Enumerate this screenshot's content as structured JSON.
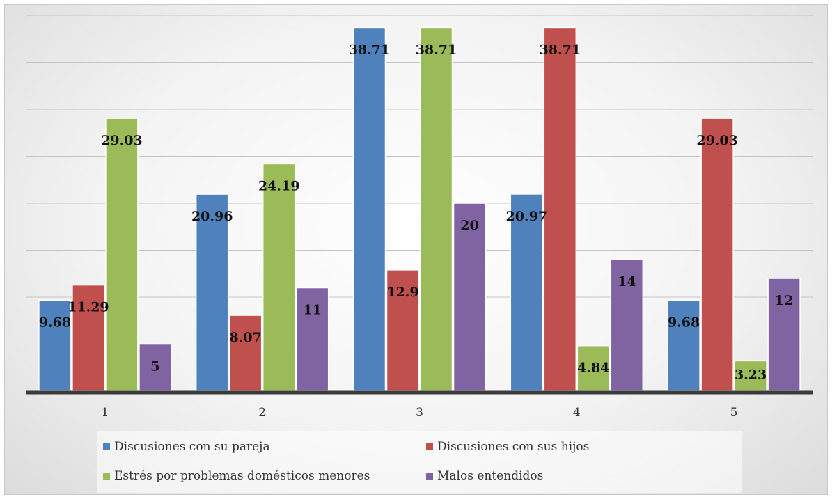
{
  "chart_data": {
    "type": "bar",
    "categories": [
      "1",
      "2",
      "3",
      "4",
      "5"
    ],
    "series": [
      {
        "name": "Discusiones con su pareja",
        "color": "#4f81bd",
        "values": [
          9.68,
          20.96,
          38.71,
          20.97,
          9.68
        ]
      },
      {
        "name": "Discusiones con sus hijos",
        "color": "#c0504d",
        "values": [
          11.29,
          8.07,
          12.9,
          38.71,
          29.03
        ]
      },
      {
        "name": "Estrés por problemas domésticos menores",
        "color": "#9bbb59",
        "values": [
          29.03,
          24.19,
          38.71,
          4.84,
          3.23
        ]
      },
      {
        "name": "Malos entendidos",
        "color": "#8064a2",
        "values": [
          5,
          11,
          20,
          14,
          12
        ]
      }
    ],
    "data_labels": [
      [
        "9.68",
        "20.96",
        "38.71",
        "20.97",
        "9.68"
      ],
      [
        "11.29",
        "8.07",
        "12.9",
        "38.71",
        "29.03"
      ],
      [
        "29.03",
        "24.19",
        "38.71",
        "4.84",
        "3.23"
      ],
      [
        "5",
        "11",
        "20",
        "14",
        "12"
      ]
    ],
    "title": "",
    "xlabel": "",
    "ylabel": "",
    "ylim": [
      0,
      40
    ],
    "grid": true,
    "legend_position": "bottom"
  }
}
